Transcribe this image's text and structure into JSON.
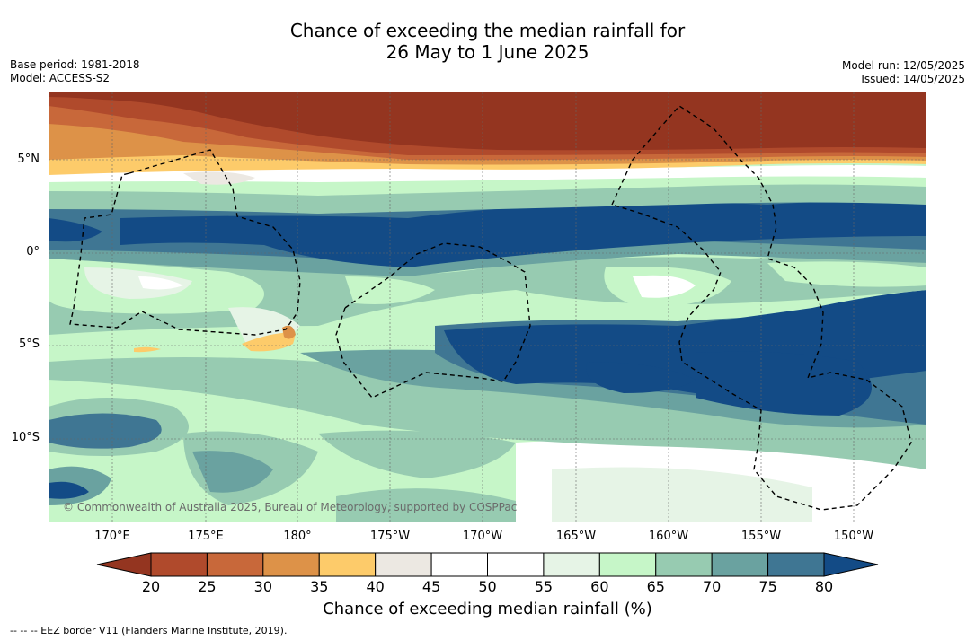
{
  "title_line1": "Chance of exceeding the median rainfall for",
  "title_line2": "26 May to 1 June 2025",
  "meta": {
    "base_period": "Base period: 1981-2018",
    "model": "Model: ACCESS-S2",
    "model_run": "Model run: 12/05/2025",
    "issued": "Issued: 14/05/2025"
  },
  "lat_labels": [
    "5°N",
    "0°",
    "5°S",
    "10°S"
  ],
  "lon_labels": [
    "170°E",
    "175°E",
    "180°",
    "175°W",
    "170°W",
    "165°W",
    "160°W",
    "155°W",
    "150°W"
  ],
  "copyright": "© Commonwealth of Australia 2025, Bureau of Meteorology, supported by COSPPac",
  "colorbar": {
    "ticks": [
      "20",
      "25",
      "30",
      "35",
      "40",
      "45",
      "50",
      "55",
      "60",
      "65",
      "70",
      "75",
      "80"
    ],
    "label": "Chance of exceeding median rainfall (%)",
    "colors": [
      "#943520",
      "#b04a2c",
      "#c8683a",
      "#dd9248",
      "#fdcb6a",
      "#ece8e2",
      "#ffffff",
      "#ffffff",
      "#e6f4e6",
      "#c6f6c8",
      "#97cbb1",
      "#6aa2a0",
      "#3f7693",
      "#134b86"
    ]
  },
  "footnote": "--  --  -- EEZ border V11 (Flanders Marine Institute, 2019)."
}
